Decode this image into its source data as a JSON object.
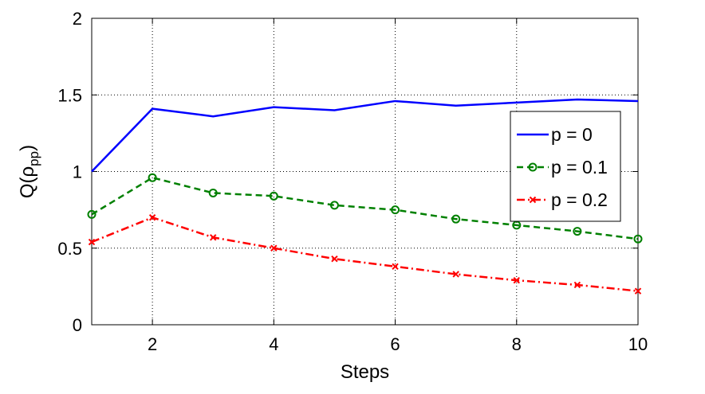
{
  "chart_data": {
    "type": "line",
    "xlabel": "Steps",
    "ylabel": "Q(ρ",
    "ylabel_sub": "pp",
    "ylabel_close": ")",
    "xlim": [
      1,
      10
    ],
    "ylim": [
      0,
      2
    ],
    "xticks": [
      2,
      4,
      6,
      8,
      10
    ],
    "yticks": [
      0,
      0.5,
      1,
      1.5,
      2
    ],
    "grid": true,
    "legend_position": "right",
    "x": [
      1,
      2,
      3,
      4,
      5,
      6,
      7,
      8,
      9,
      10
    ],
    "series": [
      {
        "name": "p = 0",
        "color": "#0000ff",
        "style": "solid",
        "marker": "none",
        "values": [
          1.0,
          1.41,
          1.36,
          1.42,
          1.4,
          1.46,
          1.43,
          1.45,
          1.47,
          1.46
        ]
      },
      {
        "name": "p = 0.1",
        "color": "#008000",
        "style": "dashed",
        "marker": "circle",
        "values": [
          0.72,
          0.96,
          0.86,
          0.84,
          0.78,
          0.75,
          0.69,
          0.65,
          0.61,
          0.56
        ]
      },
      {
        "name": "p = 0.2",
        "color": "#ff0000",
        "style": "dashdot",
        "marker": "x",
        "values": [
          0.54,
          0.7,
          0.57,
          0.5,
          0.43,
          0.38,
          0.33,
          0.29,
          0.26,
          0.22
        ]
      }
    ]
  }
}
